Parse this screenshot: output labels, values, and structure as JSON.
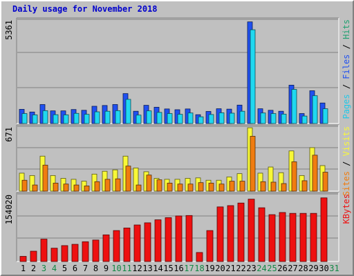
{
  "title": "Daily usage for November 2018",
  "colors": {
    "pages": "#2050f0",
    "files": "#20d8f0",
    "hits": "#20a070",
    "visits": "#f8f838",
    "sites": "#f07c10",
    "kbytes": "#ee1010",
    "weekday_label": "#000000",
    "weekend_label": "#118844"
  },
  "chart_data": [
    {
      "type": "bar",
      "panel": "hits",
      "ymax_label": "5361",
      "ylim": [
        0,
        5361
      ],
      "side_label": [
        {
          "text": "Pages",
          "color": "#20c8e8"
        },
        {
          "text": " / ",
          "color": "#000000"
        },
        {
          "text": "Files",
          "color": "#2050f0"
        },
        {
          "text": " / ",
          "color": "#000000"
        },
        {
          "text": "Hits",
          "color": "#20a070"
        }
      ],
      "categories": [
        "1",
        "2",
        "3",
        "4",
        "5",
        "6",
        "7",
        "8",
        "9",
        "10",
        "11",
        "12",
        "13",
        "14",
        "15",
        "16",
        "17",
        "18",
        "19",
        "20",
        "21",
        "22",
        "23",
        "24",
        "25",
        "26",
        "27",
        "28",
        "29",
        "30",
        "31"
      ],
      "series": [
        {
          "name": "Hits",
          "values": [
            740,
            600,
            990,
            660,
            660,
            730,
            690,
            900,
            940,
            990,
            1560,
            640,
            950,
            850,
            760,
            720,
            760,
            460,
            630,
            770,
            750,
            960,
            5300,
            770,
            690,
            640,
            2000,
            520,
            1710,
            1070,
            0
          ]
        },
        {
          "name": "Files",
          "values": [
            520,
            450,
            670,
            460,
            450,
            530,
            480,
            610,
            640,
            670,
            1260,
            440,
            660,
            580,
            520,
            480,
            550,
            350,
            470,
            560,
            540,
            640,
            4890,
            550,
            520,
            490,
            1780,
            390,
            1450,
            770,
            0
          ]
        }
      ]
    },
    {
      "type": "bar",
      "panel": "visits",
      "ymax_label": "671",
      "ylim": [
        0,
        671
      ],
      "side_label": [
        {
          "text": "Sites",
          "color": "#f07c10"
        },
        {
          "text": " / ",
          "color": "#000000"
        },
        {
          "text": "Visits",
          "color": "#f8f838"
        }
      ],
      "categories": [
        "1",
        "2",
        "3",
        "4",
        "5",
        "6",
        "7",
        "8",
        "9",
        "10",
        "11",
        "12",
        "13",
        "14",
        "15",
        "16",
        "17",
        "18",
        "19",
        "20",
        "21",
        "22",
        "23",
        "24",
        "25",
        "26",
        "27",
        "28",
        "29",
        "30",
        "31"
      ],
      "series": [
        {
          "name": "Visits",
          "values": [
            190,
            165,
            370,
            165,
            135,
            125,
            105,
            180,
            210,
            225,
            370,
            245,
            205,
            135,
            125,
            125,
            135,
            140,
            115,
            115,
            150,
            185,
            670,
            190,
            255,
            195,
            425,
            165,
            460,
            270,
            0
          ]
        },
        {
          "name": "Sites",
          "values": [
            115,
            65,
            275,
            85,
            75,
            65,
            55,
            100,
            125,
            130,
            265,
            65,
            170,
            120,
            85,
            75,
            75,
            90,
            85,
            75,
            105,
            105,
            580,
            100,
            95,
            80,
            310,
            110,
            380,
            200,
            0
          ]
        }
      ]
    },
    {
      "type": "bar",
      "panel": "kbytes",
      "ymax_label": "154020",
      "ylim": [
        0,
        154020
      ],
      "side_label": [
        {
          "text": "KBytes",
          "color": "#ee1010"
        }
      ],
      "categories": [
        "1",
        "2",
        "3",
        "4",
        "5",
        "6",
        "7",
        "8",
        "9",
        "10",
        "11",
        "12",
        "13",
        "14",
        "15",
        "16",
        "17",
        "18",
        "19",
        "20",
        "21",
        "22",
        "23",
        "24",
        "25",
        "26",
        "27",
        "28",
        "29",
        "30",
        "31"
      ],
      "series": [
        {
          "name": "KBytes",
          "values": [
            12000,
            24000,
            52000,
            31000,
            37000,
            40000,
            46000,
            50000,
            62000,
            72000,
            78000,
            85000,
            90000,
            97000,
            102000,
            106000,
            107000,
            21000,
            72000,
            127000,
            130000,
            136000,
            145000,
            125000,
            109000,
            114000,
            112000,
            112000,
            112000,
            148000,
            0
          ]
        }
      ]
    }
  ]
}
